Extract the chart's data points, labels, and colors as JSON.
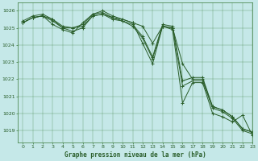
{
  "title": "Graphe pression niveau de la mer (hPa)",
  "background_color": "#c5e8e8",
  "grid_color": "#3a7a3a",
  "line_color": "#2a5e2a",
  "xlim": [
    -0.5,
    23
  ],
  "ylim": [
    1018.3,
    1026.5
  ],
  "yticks": [
    1019,
    1020,
    1021,
    1022,
    1023,
    1024,
    1025,
    1026
  ],
  "xticks": [
    0,
    1,
    2,
    3,
    4,
    5,
    6,
    7,
    8,
    9,
    10,
    11,
    12,
    13,
    14,
    15,
    16,
    17,
    18,
    19,
    20,
    21,
    22,
    23
  ],
  "series": [
    [
      1025.3,
      1025.6,
      1025.7,
      1025.5,
      1025.0,
      1025.0,
      1025.1,
      1025.7,
      1025.8,
      1025.6,
      1025.5,
      1025.3,
      1025.1,
      1024.1,
      1025.1,
      1025.0,
      1022.9,
      1022.0,
      1022.0,
      1020.4,
      1020.2,
      1019.8,
      1019.1,
      1018.9
    ],
    [
      1025.3,
      1025.6,
      1025.7,
      1025.4,
      1025.0,
      1024.8,
      1025.0,
      1025.7,
      1025.8,
      1025.5,
      1025.4,
      1025.1,
      1024.4,
      1023.2,
      1025.1,
      1025.0,
      1021.6,
      1021.9,
      1021.9,
      1020.3,
      1020.1,
      1019.7,
      1019.0,
      1018.8
    ],
    [
      1025.4,
      1025.7,
      1025.8,
      1025.5,
      1025.1,
      1025.0,
      1025.2,
      1025.8,
      1025.9,
      1025.6,
      1025.4,
      1025.2,
      1024.5,
      1023.3,
      1025.2,
      1025.1,
      1021.9,
      1022.1,
      1022.1,
      1020.4,
      1020.2,
      1019.8,
      1019.1,
      1018.9
    ],
    [
      1025.3,
      1025.6,
      1025.7,
      1025.2,
      1024.9,
      1024.7,
      1025.3,
      1025.8,
      1026.0,
      1025.7,
      1025.5,
      1025.3,
      1024.1,
      1022.9,
      1025.1,
      1024.9,
      1020.6,
      1021.8,
      1021.8,
      1020.0,
      1019.8,
      1019.5,
      1019.9,
      1018.7
    ]
  ]
}
